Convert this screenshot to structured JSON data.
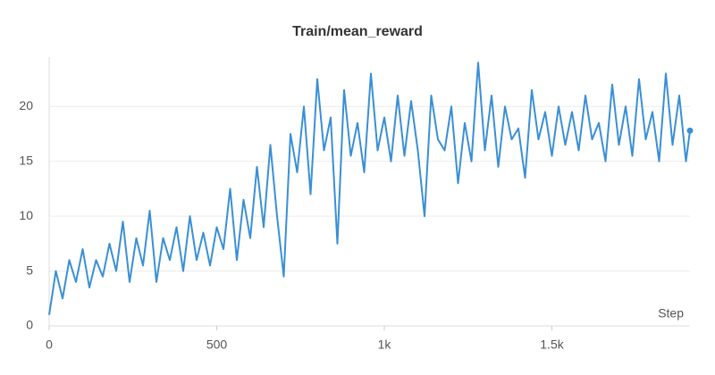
{
  "chart_data": {
    "type": "line",
    "title": "Train/mean_reward",
    "x_label": "Step",
    "x": [
      0,
      20,
      40,
      60,
      80,
      100,
      120,
      140,
      160,
      180,
      200,
      220,
      240,
      260,
      280,
      300,
      320,
      340,
      360,
      380,
      400,
      420,
      440,
      460,
      480,
      500,
      520,
      540,
      560,
      580,
      600,
      620,
      640,
      660,
      680,
      700,
      720,
      740,
      760,
      780,
      800,
      820,
      840,
      860,
      880,
      900,
      920,
      940,
      960,
      980,
      1000,
      1020,
      1040,
      1060,
      1080,
      1100,
      1120,
      1140,
      1160,
      1180,
      1200,
      1220,
      1240,
      1260,
      1280,
      1300,
      1320,
      1340,
      1360,
      1380,
      1400,
      1420,
      1440,
      1460,
      1480,
      1500,
      1520,
      1540,
      1560,
      1580,
      1600,
      1620,
      1640,
      1660,
      1680,
      1700,
      1720,
      1740,
      1760,
      1780,
      1800,
      1820,
      1840,
      1860,
      1880,
      1900,
      1912
    ],
    "series": [
      {
        "name": "mean_reward",
        "color": "#3a8fd6",
        "values": [
          1,
          5,
          2.5,
          6,
          4,
          7,
          3.5,
          6,
          4.5,
          7.5,
          5,
          9.5,
          4,
          8,
          5.5,
          10.5,
          4,
          8,
          6,
          9,
          5,
          10,
          6,
          8.5,
          5.5,
          9,
          7,
          12.5,
          6,
          11.5,
          8,
          14.5,
          9,
          16.5,
          10,
          4.5,
          17.5,
          14,
          20,
          12,
          22.5,
          16,
          19,
          7.5,
          21.5,
          15.5,
          18.5,
          14,
          23,
          16,
          19,
          15,
          21,
          15.5,
          20.5,
          16,
          10,
          21,
          17,
          16,
          20,
          13,
          18.5,
          15,
          24,
          16,
          21,
          14.5,
          20,
          17,
          18,
          13.5,
          21.5,
          17,
          19.5,
          15.5,
          20,
          16.5,
          19.5,
          16,
          21,
          17,
          18.5,
          15,
          22,
          16.5,
          20,
          15.5,
          22.5,
          17,
          19.5,
          15,
          23,
          16.5,
          21,
          15,
          17.8
        ]
      }
    ],
    "xlim": [
      0,
      1912
    ],
    "ylim": [
      0,
      24.5
    ],
    "xticks": [
      0,
      500,
      {
        "value": 1000,
        "label": "1k"
      },
      {
        "value": 1500,
        "label": "1.5k"
      }
    ],
    "yticks": [
      0,
      5,
      10,
      15,
      20
    ],
    "grid": true
  }
}
